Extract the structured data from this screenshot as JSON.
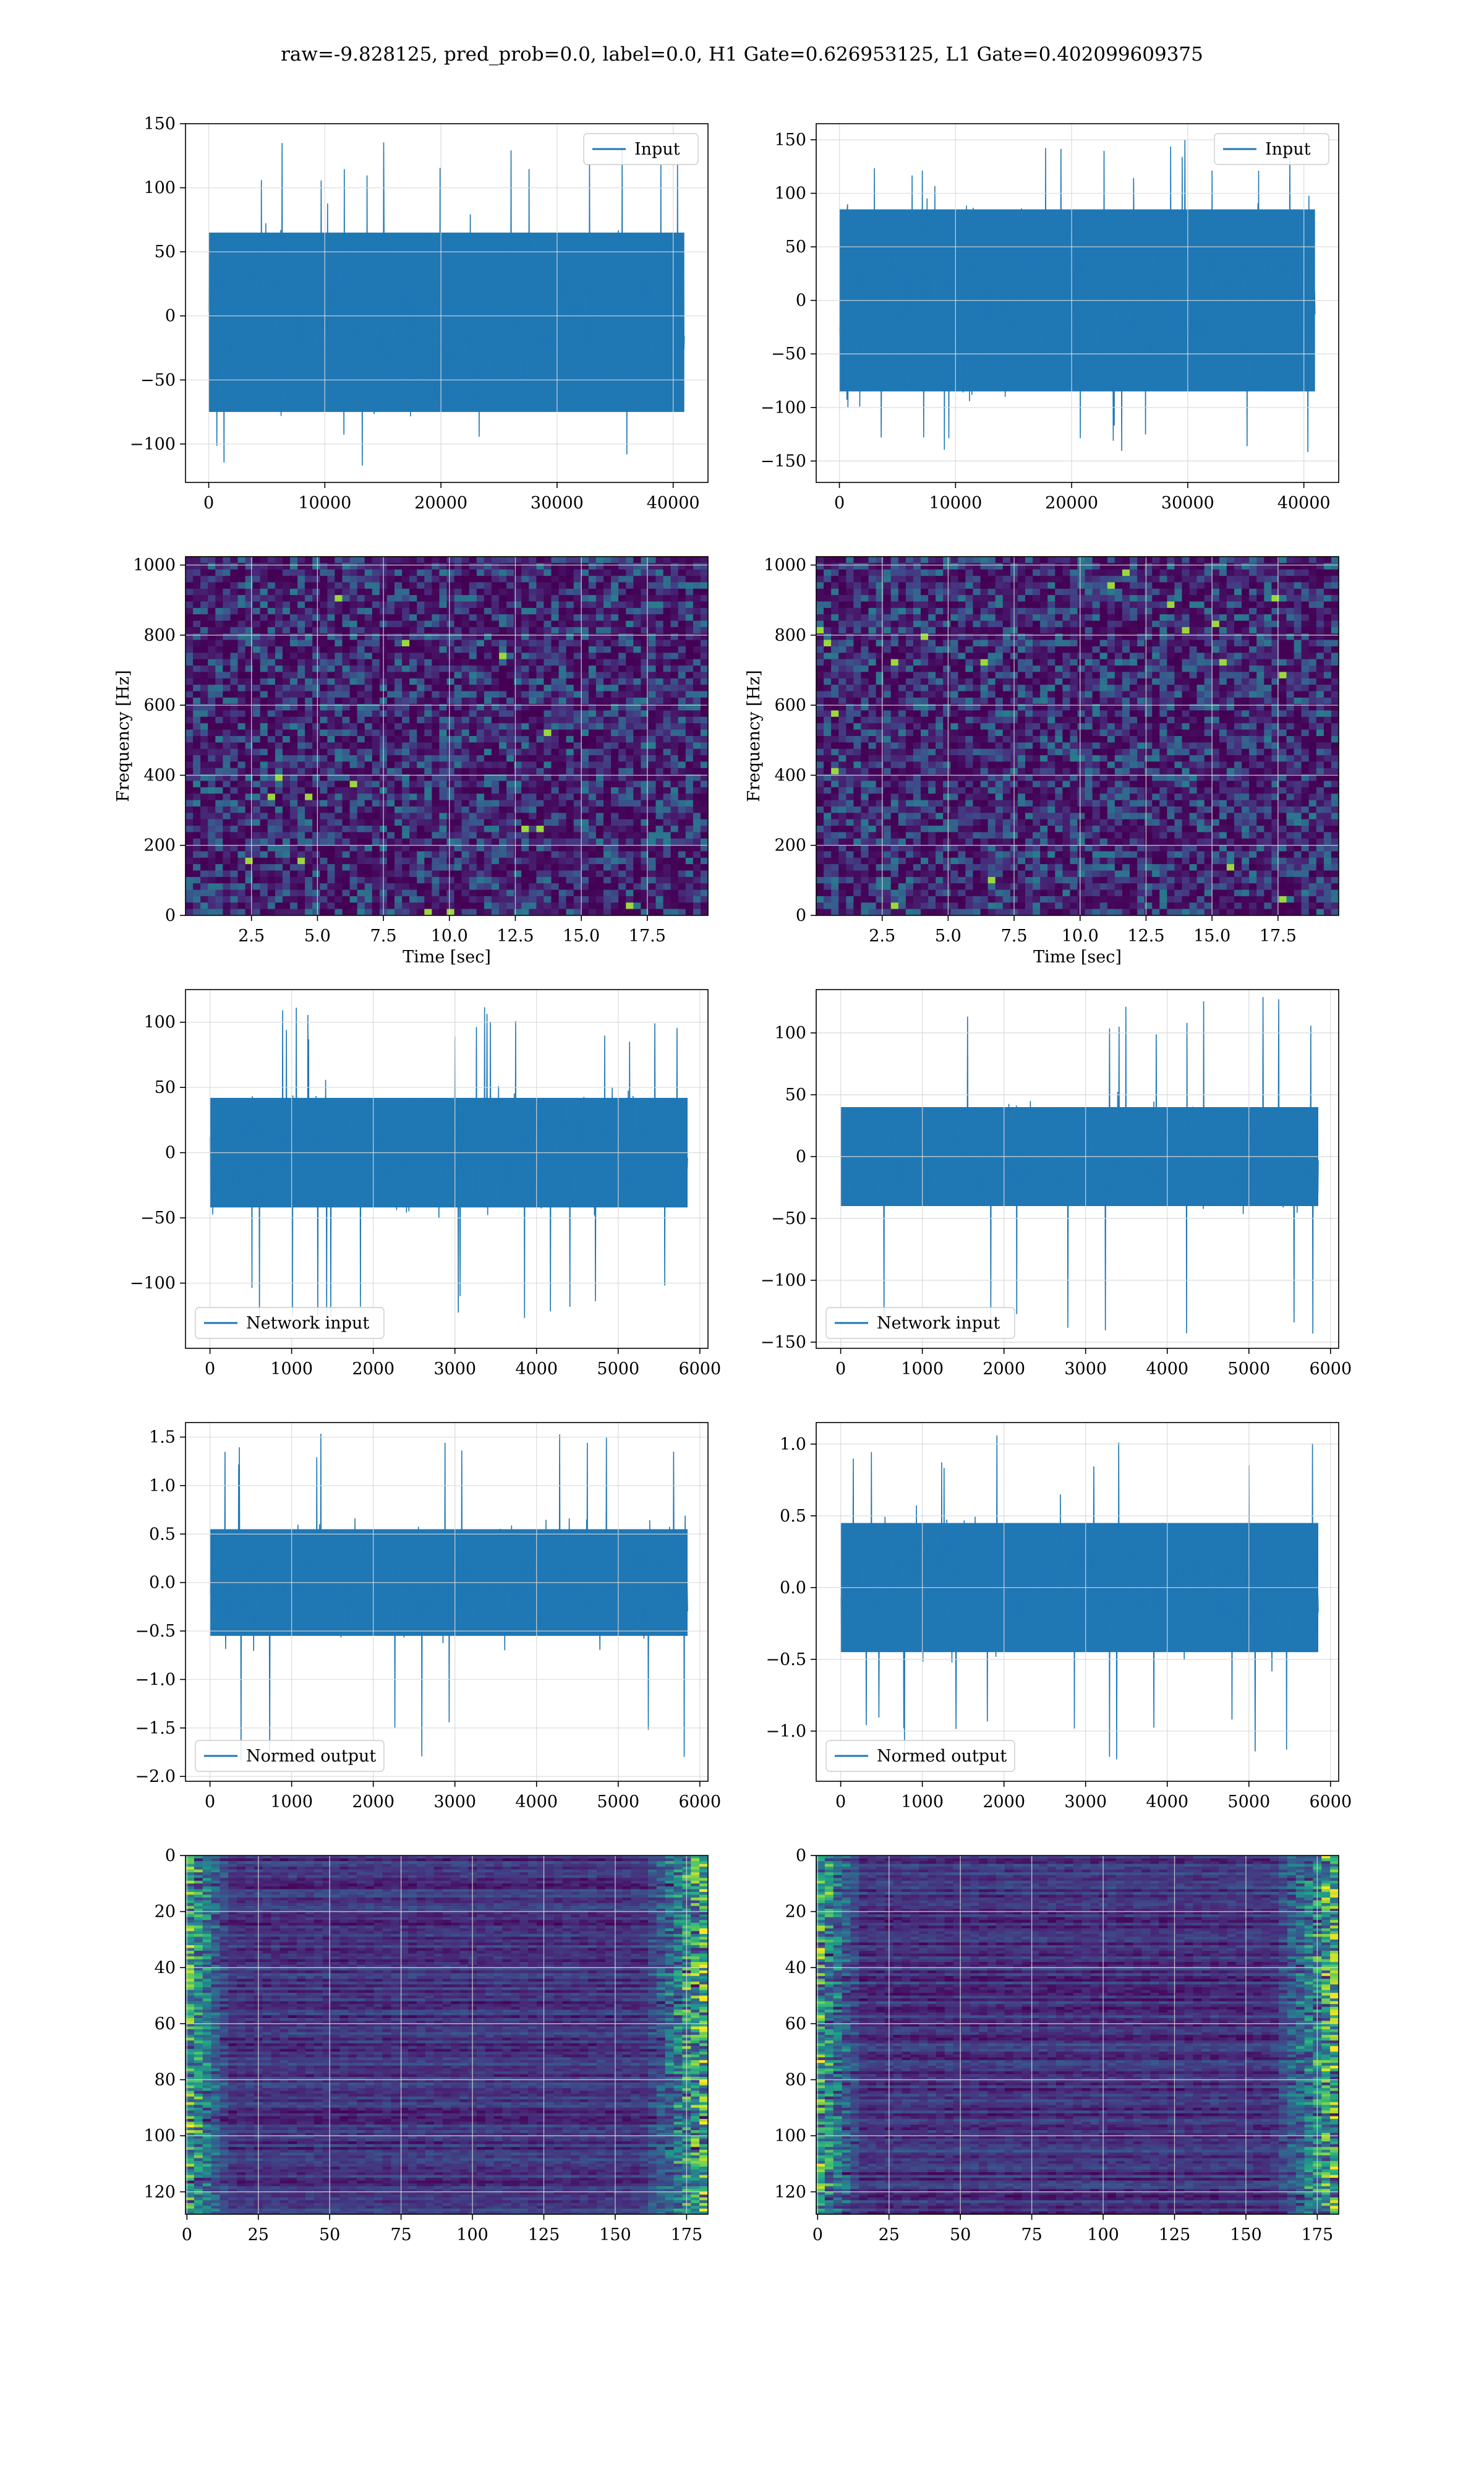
{
  "figure": {
    "title": "raw=-9.828125, pred_prob=0.0, label=0.0, H1 Gate=0.626953125, L1 Gate=0.402099609375"
  },
  "colors": {
    "series": "#1f77b4",
    "grid": "#d9d9d9",
    "viridis_low": "#440154",
    "viridis_high": "#fde725"
  },
  "chart_data": [
    {
      "id": "input-h1",
      "type": "line",
      "legend": "Input",
      "legend_loc": "upper-right",
      "xlim": [
        -2000,
        43000
      ],
      "ylim": [
        -130,
        150
      ],
      "xticks": [
        0,
        10000,
        20000,
        30000,
        40000
      ],
      "yticks": [
        -100,
        -50,
        0,
        50,
        100,
        150
      ],
      "x_range": [
        0,
        40960
      ],
      "envelope": {
        "core_min": -75,
        "core_max": 65,
        "peak_min": -120,
        "peak_max": 138
      },
      "xlabel": "",
      "ylabel": "",
      "grid": true
    },
    {
      "id": "input-l1",
      "type": "line",
      "legend": "Input",
      "legend_loc": "upper-right",
      "xlim": [
        -2000,
        43000
      ],
      "ylim": [
        -170,
        165
      ],
      "xticks": [
        0,
        10000,
        20000,
        30000,
        40000
      ],
      "yticks": [
        -150,
        -100,
        -50,
        0,
        50,
        100,
        150
      ],
      "x_range": [
        0,
        40960
      ],
      "envelope": {
        "core_min": -85,
        "core_max": 85,
        "peak_min": -155,
        "peak_max": 150
      },
      "xlabel": "",
      "ylabel": "",
      "grid": true
    },
    {
      "id": "spectrogram-h1",
      "type": "heatmap",
      "xlim": [
        0,
        19.8
      ],
      "ylim": [
        0,
        1024
      ],
      "xticks": [
        2.5,
        5.0,
        7.5,
        10.0,
        12.5,
        15.0,
        17.5
      ],
      "xtick_labels": [
        "2.5",
        "5.0",
        "7.5",
        "10.0",
        "12.5",
        "15.0",
        "17.5"
      ],
      "yticks": [
        0,
        200,
        400,
        600,
        800,
        1000
      ],
      "xlabel": "Time [sec]",
      "ylabel": "Frequency [Hz]",
      "grid": true,
      "colormap": "viridis"
    },
    {
      "id": "spectrogram-l1",
      "type": "heatmap",
      "xlim": [
        0,
        19.8
      ],
      "ylim": [
        0,
        1024
      ],
      "xticks": [
        2.5,
        5.0,
        7.5,
        10.0,
        12.5,
        15.0,
        17.5
      ],
      "xtick_labels": [
        "2.5",
        "5.0",
        "7.5",
        "10.0",
        "12.5",
        "15.0",
        "17.5"
      ],
      "yticks": [
        0,
        200,
        400,
        600,
        800,
        1000
      ],
      "xlabel": "Time [sec]",
      "ylabel": "Frequency [Hz]",
      "grid": true,
      "colormap": "viridis"
    },
    {
      "id": "network-input-h1",
      "type": "line",
      "legend": "Network input",
      "legend_loc": "lower-left",
      "xlim": [
        -300,
        6100
      ],
      "ylim": [
        -150,
        125
      ],
      "xticks": [
        0,
        1000,
        2000,
        3000,
        4000,
        5000,
        6000
      ],
      "yticks": [
        -100,
        -50,
        0,
        50,
        100
      ],
      "x_range": [
        0,
        5850
      ],
      "envelope": {
        "core_min": -42,
        "core_max": 42,
        "peak_min": -135,
        "peak_max": 112
      },
      "xlabel": "",
      "ylabel": "",
      "grid": true
    },
    {
      "id": "network-input-l1",
      "type": "line",
      "legend": "Network input",
      "legend_loc": "lower-left",
      "xlim": [
        -300,
        6100
      ],
      "ylim": [
        -155,
        135
      ],
      "xticks": [
        0,
        1000,
        2000,
        3000,
        4000,
        5000,
        6000
      ],
      "yticks": [
        -150,
        -100,
        -50,
        0,
        50,
        100
      ],
      "x_range": [
        0,
        5850
      ],
      "envelope": {
        "core_min": -40,
        "core_max": 40,
        "peak_min": -145,
        "peak_max": 130
      },
      "xlabel": "",
      "ylabel": "",
      "grid": true
    },
    {
      "id": "normed-output-h1",
      "type": "line",
      "legend": "Normed output",
      "legend_loc": "lower-left",
      "xlim": [
        -300,
        6100
      ],
      "ylim": [
        -2.05,
        1.65
      ],
      "xticks": [
        0,
        1000,
        2000,
        3000,
        4000,
        5000,
        6000
      ],
      "yticks": [
        -2.0,
        -1.5,
        -1.0,
        -0.5,
        0.0,
        0.5,
        1.0,
        1.5
      ],
      "ytick_labels": [
        "−2.0",
        "−1.5",
        "−1.0",
        "−0.5",
        "0.0",
        "0.5",
        "1.0",
        "1.5"
      ],
      "x_range": [
        0,
        5850
      ],
      "envelope": {
        "core_min": -0.55,
        "core_max": 0.55,
        "peak_min": -1.85,
        "peak_max": 1.55
      },
      "xlabel": "",
      "ylabel": "",
      "grid": true
    },
    {
      "id": "normed-output-l1",
      "type": "line",
      "legend": "Normed output",
      "legend_loc": "lower-left",
      "xlim": [
        -300,
        6100
      ],
      "ylim": [
        -1.35,
        1.15
      ],
      "xticks": [
        0,
        1000,
        2000,
        3000,
        4000,
        5000,
        6000
      ],
      "yticks": [
        -1.0,
        -0.5,
        0.0,
        0.5,
        1.0
      ],
      "ytick_labels": [
        "−1.0",
        "−0.5",
        "0.0",
        "0.5",
        "1.0"
      ],
      "x_range": [
        0,
        5850
      ],
      "envelope": {
        "core_min": -0.45,
        "core_max": 0.45,
        "peak_min": -1.2,
        "peak_max": 1.1
      },
      "xlabel": "",
      "ylabel": "",
      "grid": true
    },
    {
      "id": "feature-map-h1",
      "type": "heatmap",
      "xlim": [
        -0.5,
        182.5
      ],
      "ylim": [
        128,
        0
      ],
      "xticks": [
        0,
        25,
        50,
        75,
        100,
        125,
        150,
        175
      ],
      "yticks": [
        0,
        20,
        40,
        60,
        80,
        100,
        120
      ],
      "xlabel": "",
      "ylabel": "",
      "grid": true,
      "colormap": "viridis",
      "rows": 128,
      "cols": 183
    },
    {
      "id": "feature-map-l1",
      "type": "heatmap",
      "xlim": [
        -0.5,
        182.5
      ],
      "ylim": [
        128,
        0
      ],
      "xticks": [
        0,
        25,
        50,
        75,
        100,
        125,
        150,
        175
      ],
      "yticks": [
        0,
        20,
        40,
        60,
        80,
        100,
        120
      ],
      "xlabel": "",
      "ylabel": "",
      "grid": true,
      "colormap": "viridis",
      "rows": 128,
      "cols": 183
    }
  ]
}
